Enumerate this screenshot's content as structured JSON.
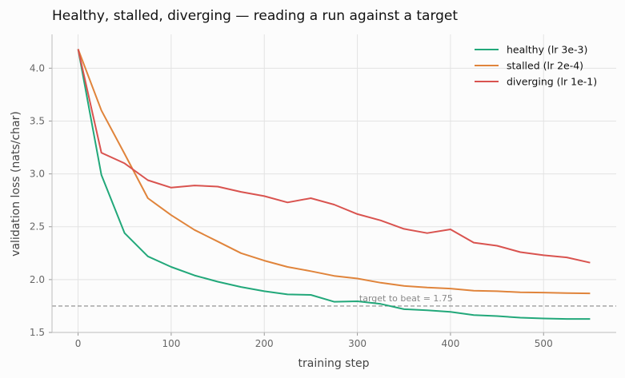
{
  "chart_data": {
    "type": "line",
    "title": "Healthy, stalled, diverging — reading a run against a target",
    "xlabel": "training step",
    "ylabel": "validation loss (nats/char)",
    "xlim": [
      -28,
      578
    ],
    "ylim": [
      1.5,
      4.32
    ],
    "xticks": [
      0,
      100,
      200,
      300,
      400,
      500
    ],
    "yticks": [
      1.5,
      2.0,
      2.5,
      3.0,
      3.5,
      4.0
    ],
    "grid": true,
    "legend_position": "top-right",
    "x": [
      0,
      25,
      50,
      75,
      100,
      125,
      150,
      175,
      200,
      225,
      250,
      275,
      300,
      325,
      350,
      375,
      400,
      425,
      450,
      475,
      500,
      525,
      550
    ],
    "series": [
      {
        "name": "healthy (lr 3e-3)",
        "color": "#22a87a",
        "values": [
          4.18,
          2.99,
          2.44,
          2.22,
          2.12,
          2.04,
          1.98,
          1.93,
          1.89,
          1.86,
          1.855,
          1.79,
          1.795,
          1.77,
          1.72,
          1.71,
          1.695,
          1.665,
          1.655,
          1.64,
          1.632,
          1.628,
          1.628
        ]
      },
      {
        "name": "stalled (lr 2e-4)",
        "color": "#e0843b",
        "values": [
          4.18,
          3.6,
          3.19,
          2.77,
          2.61,
          2.47,
          2.36,
          2.25,
          2.18,
          2.12,
          2.08,
          2.035,
          2.01,
          1.97,
          1.94,
          1.925,
          1.915,
          1.895,
          1.89,
          1.88,
          1.877,
          1.873,
          1.87
        ]
      },
      {
        "name": "diverging (lr 1e-1)",
        "color": "#d9534f",
        "values": [
          4.18,
          3.2,
          3.1,
          2.94,
          2.87,
          2.89,
          2.88,
          2.83,
          2.79,
          2.73,
          2.77,
          2.71,
          2.62,
          2.56,
          2.48,
          2.44,
          2.475,
          2.35,
          2.32,
          2.26,
          2.23,
          2.21,
          2.16
        ]
      }
    ],
    "reference_line": {
      "y": 1.75,
      "label": "target to beat = 1.75",
      "color": "#888888"
    }
  }
}
